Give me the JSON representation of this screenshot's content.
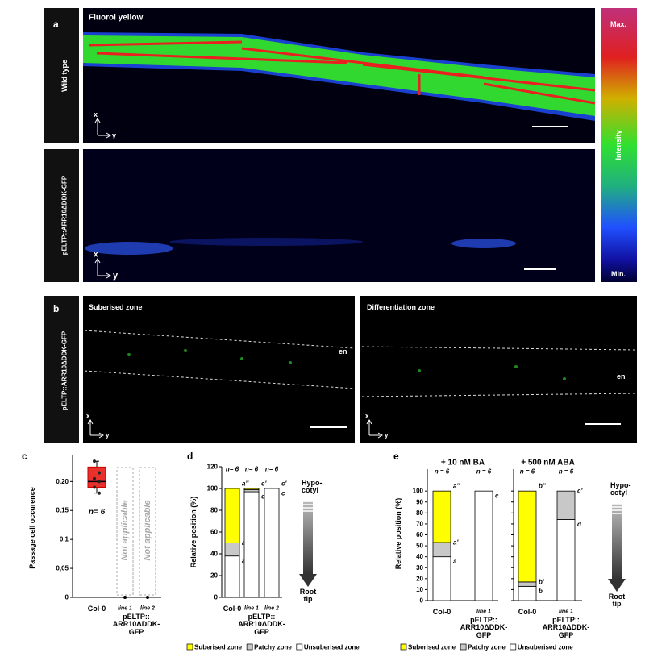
{
  "panel_a": {
    "label": "a",
    "rows": [
      {
        "side_label": "Wild type",
        "title": "Fluorol yellow",
        "axis_x": "x",
        "axis_y": "y"
      },
      {
        "side_label": "pELTP::ARR10ΔDDK-GFP",
        "axis_x": "x",
        "axis_y": "y"
      }
    ],
    "colorbar": {
      "max": "Max.",
      "title": "Intensity",
      "min": "Min."
    }
  },
  "panel_b": {
    "label": "b",
    "side_label": "pELTP::ARR10ΔDDK-GFP",
    "images": [
      {
        "title": "Suberised zone",
        "tissue": "en",
        "axis_x": "x",
        "axis_y": "y"
      },
      {
        "title": "Differentiation zone",
        "tissue": "en",
        "axis_x": "x",
        "axis_y": "y"
      }
    ]
  },
  "chart_data": [
    {
      "type": "box",
      "panel_label": "c",
      "ylabel": "Passage cell occurence",
      "categories": [
        "Col-0",
        "line 1",
        "line 2"
      ],
      "group": [
        null,
        "pELTP::\nARR10ΔDDK-\nGFP",
        "pELTP::\nARR10ΔDDK-\nGFP"
      ],
      "boxes": [
        {
          "whisker_low": 0.18,
          "q1": 0.19,
          "median": 0.2,
          "q3": 0.225,
          "whisker_high": 0.235
        },
        {
          "median": 0
        },
        {
          "median": 0
        }
      ],
      "points": [
        [
          0.235,
          0.215,
          0.205,
          0.2,
          0.19,
          0.18
        ],
        [],
        []
      ],
      "color": "#e8312a",
      "n_labels": [
        "n= 6",
        null,
        null
      ],
      "notes": [
        null,
        "Not applicable",
        "Not applicable"
      ],
      "ylim": [
        0,
        0.245
      ],
      "yticks": [
        0,
        {
          "value": 0.05,
          "label": "0,05"
        },
        {
          "value": 0.1,
          "label": "0,1"
        },
        {
          "value": 0.15,
          "label": "0,15"
        },
        {
          "value": 0.2,
          "label": "0,20"
        }
      ]
    },
    {
      "type": "stacked_bar",
      "panel_label": "d",
      "ylabel": "Relative position (%)",
      "categories": [
        "Col-0",
        "line 1",
        "line 2"
      ],
      "group": [
        null,
        "pELTP::\nARR10ΔDDK-\nGFP",
        "pELTP::\nARR10ΔDDK-\nGFP"
      ],
      "series": [
        {
          "name": "Unsuberised zone",
          "color": "#ffffff",
          "values": [
            38,
            97,
            100
          ],
          "letters": [
            "a",
            "c",
            "c"
          ]
        },
        {
          "name": "Patchy zone",
          "color": "#c8c8c8",
          "values": [
            12,
            2,
            0
          ],
          "letters": [
            "a'",
            null,
            null
          ]
        },
        {
          "name": "Suberised zone",
          "color": "#ffff00",
          "values": [
            50,
            1,
            0
          ],
          "letters": [
            "a''",
            "c'",
            "c'"
          ]
        }
      ],
      "n_labels": [
        "n= 6",
        "n= 6",
        "n= 6"
      ],
      "arrow_top": "Hypo-\ncotyl",
      "arrow_bottom": "Root\ntip",
      "legend": true,
      "ylim": [
        0,
        120
      ],
      "yticks": [
        0,
        20,
        40,
        60,
        80,
        100,
        120
      ]
    },
    {
      "type": "stacked_bar",
      "panel_label": "e",
      "ylabel": "Relative position (%)",
      "facet": [
        "+ 10 nM BA",
        "+ 10 nM BA",
        "+ 500 nM ABA",
        "+ 500 nM ABA"
      ],
      "categories": [
        "Col-0",
        "line 1",
        "Col-0",
        "line 1"
      ],
      "group": [
        null,
        "pELTP::\nARR10ΔDDK-\nGFP",
        null,
        "pELTP::\nARR10ΔDDK-\nGFP"
      ],
      "series": [
        {
          "name": "Unsuberised zone",
          "color": "#ffffff",
          "values": [
            40,
            100,
            13,
            74
          ],
          "letters": [
            "a",
            "c",
            "b",
            "d"
          ]
        },
        {
          "name": "Patchy zone",
          "color": "#c8c8c8",
          "values": [
            13,
            0,
            4,
            26
          ],
          "letters": [
            "a'",
            null,
            "b'",
            "c'"
          ]
        },
        {
          "name": "Suberised zone",
          "color": "#ffff00",
          "values": [
            47,
            0,
            83,
            0
          ],
          "letters": [
            "a''",
            null,
            "b''",
            null
          ]
        }
      ],
      "n_labels": [
        "n = 6",
        "n = 6",
        "n = 6",
        "n = 6"
      ],
      "arrow_top": "Hypo-\ncotyl",
      "arrow_bottom": "Root\ntip",
      "legend": true,
      "ylim": [
        0,
        120
      ],
      "yticks": [
        0,
        10,
        20,
        30,
        40,
        50,
        60,
        70,
        80,
        90,
        100
      ]
    }
  ]
}
